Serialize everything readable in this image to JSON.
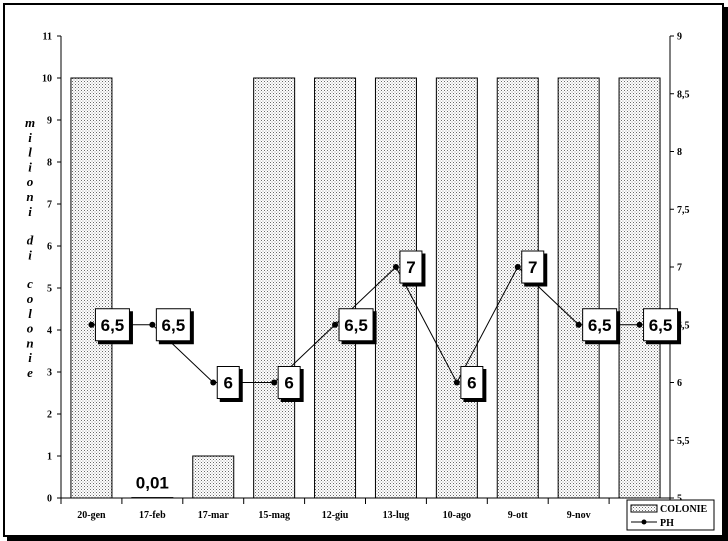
{
  "chart_data": {
    "type": "bar",
    "categories": [
      "20-gen",
      "17-feb",
      "17-mar",
      "15-mag",
      "12-giu",
      "13-lug",
      "10-ago",
      "9-ott",
      "9-nov",
      ""
    ],
    "series": [
      {
        "name": "COLONIE",
        "type": "bar",
        "axis": "left",
        "values": [
          10,
          0.01,
          1,
          10,
          10,
          10,
          10,
          10,
          10,
          10
        ]
      },
      {
        "name": "PH",
        "type": "line",
        "axis": "right",
        "values": [
          6.5,
          6.5,
          6,
          6,
          6.5,
          7,
          6,
          7,
          6.5,
          6.5
        ],
        "labels": [
          "6,5",
          "6,5",
          "6",
          "6",
          "6,5",
          "7",
          "6",
          "7",
          "6,5",
          "6,5"
        ]
      }
    ],
    "bar_value_label": "0,01",
    "ylabel": "milioni di colonie",
    "ylim": [
      0,
      11
    ],
    "yticks": [
      "0",
      "1",
      "2",
      "3",
      "4",
      "5",
      "6",
      "7",
      "8",
      "9",
      "10",
      "11"
    ],
    "y2lim": [
      5,
      9
    ],
    "y2ticks": [
      "5",
      "5,5",
      "6",
      "6,5",
      "7",
      "7,5",
      "8",
      "8,5",
      "9"
    ],
    "legend": {
      "placement": "bottom-right",
      "entries": [
        "COLONIE",
        "PH"
      ]
    },
    "grid": false
  }
}
